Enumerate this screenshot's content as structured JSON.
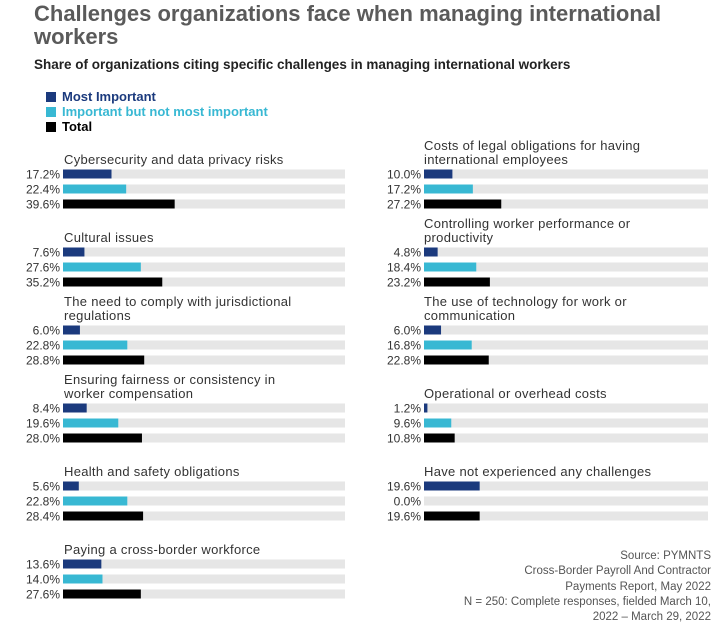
{
  "title": "Challenges organizations face when managing international workers",
  "subtitle": "Share of organizations citing specific challenges in managing international workers",
  "colors": {
    "most": "#1b3a7d",
    "important": "#38b8d3",
    "total": "#000000",
    "track": "#e6e6e6"
  },
  "source_lines": [
    "Source: PYMNTS",
    "Cross-Border Payroll And Contractor",
    "Payments Report, May 2022",
    "N = 250: Complete responses, fielded March 10,",
    "2022 – March 29, 2022"
  ],
  "chart_data": {
    "type": "bar",
    "orientation": "horizontal",
    "series": [
      {
        "name": "Most Important",
        "color": "#1b3a7d"
      },
      {
        "name": "Important but not most important",
        "color": "#38b8d3"
      },
      {
        "name": "Total",
        "color": "#000000"
      }
    ],
    "xlim": [
      0,
      100
    ],
    "legend_position": "top-left",
    "grid": false,
    "groups": [
      {
        "category": "Cybersecurity and data privacy risks",
        "values": [
          17.2,
          22.4,
          39.6
        ],
        "labels": [
          "17.2%",
          "22.4%",
          "39.6%"
        ]
      },
      {
        "category": "Cultural issues",
        "values": [
          7.6,
          27.6,
          35.2
        ],
        "labels": [
          "7.6%",
          "27.6%",
          "35.2%"
        ]
      },
      {
        "category": "The need to comply with jurisdictional regulations",
        "values": [
          6.0,
          22.8,
          28.8
        ],
        "labels": [
          "6.0%",
          "22.8%",
          "28.8%"
        ]
      },
      {
        "category": "Ensuring fairness or consistency in worker compensation",
        "values": [
          8.4,
          19.6,
          28.0
        ],
        "labels": [
          "8.4%",
          "19.6%",
          "28.0%"
        ]
      },
      {
        "category": "Health and safety obligations",
        "values": [
          5.6,
          22.8,
          28.4
        ],
        "labels": [
          "5.6%",
          "22.8%",
          "28.4%"
        ]
      },
      {
        "category": "Paying a cross-border workforce",
        "values": [
          13.6,
          14.0,
          27.6
        ],
        "labels": [
          "13.6%",
          "14.0%",
          "27.6%"
        ]
      },
      {
        "category": "Costs of legal obligations for having international employees",
        "values": [
          10.0,
          17.2,
          27.2
        ],
        "labels": [
          "10.0%",
          "17.2%",
          "27.2%"
        ]
      },
      {
        "category": "Controlling worker performance or productivity",
        "values": [
          4.8,
          18.4,
          23.2
        ],
        "labels": [
          "4.8%",
          "18.4%",
          "23.2%"
        ]
      },
      {
        "category": "The use of technology for work or communication",
        "values": [
          6.0,
          16.8,
          22.8
        ],
        "labels": [
          "6.0%",
          "16.8%",
          "22.8%"
        ]
      },
      {
        "category": "Operational or overhead costs",
        "values": [
          1.2,
          9.6,
          10.8
        ],
        "labels": [
          "1.2%",
          "9.6%",
          "10.8%"
        ]
      },
      {
        "category": "Have not experienced any challenges",
        "values": [
          19.6,
          0.0,
          19.6
        ],
        "labels": [
          "19.6%",
          "0.0%",
          "19.6%"
        ]
      }
    ]
  }
}
